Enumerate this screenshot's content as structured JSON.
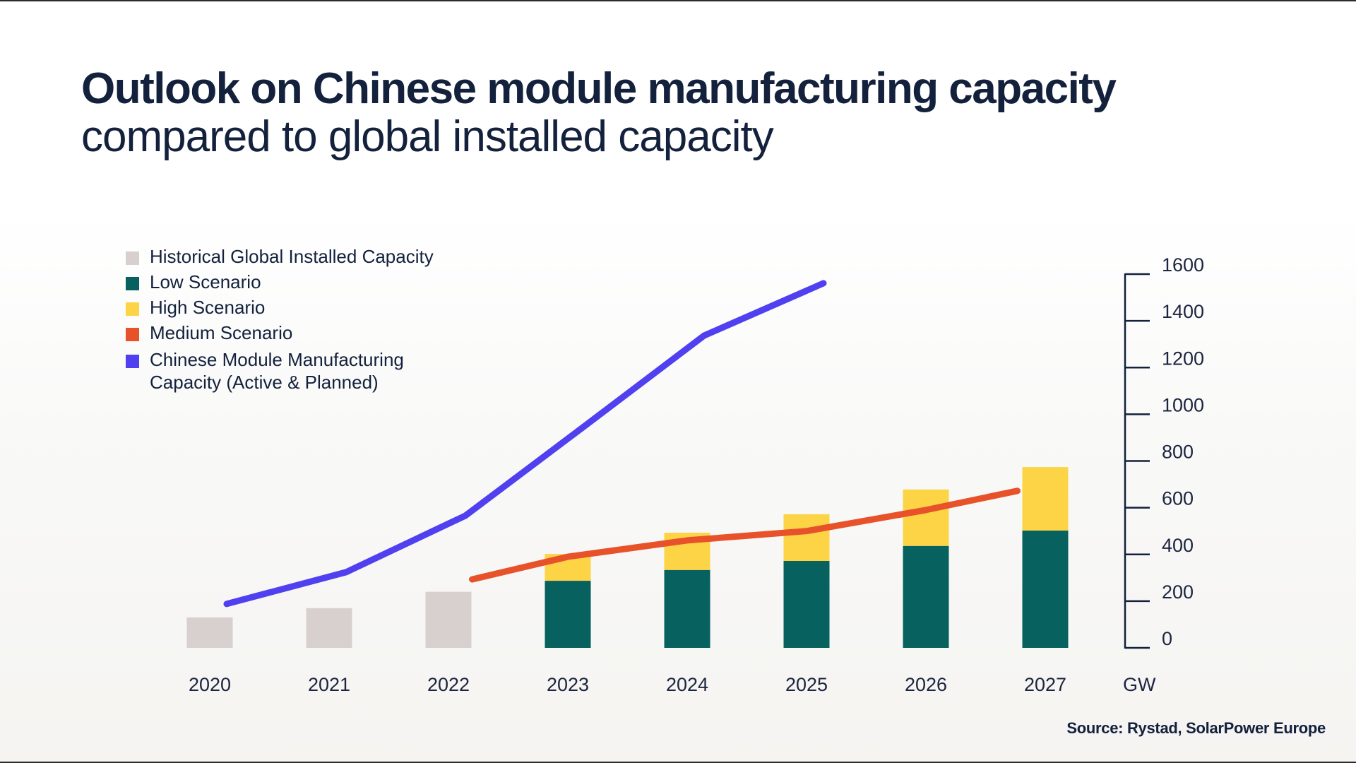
{
  "header": {
    "title": "Outlook on Chinese module manufacturing capacity",
    "subtitle": "compared to global installed capacity"
  },
  "legend": [
    {
      "key": "historical",
      "label": "Historical Global Installed Capacity",
      "color": "#d8d0ce"
    },
    {
      "key": "low",
      "label": "Low Scenario",
      "color": "#07615f"
    },
    {
      "key": "high",
      "label": "High Scenario",
      "color": "#fdd446"
    },
    {
      "key": "medium",
      "label": "Medium Scenario",
      "color": "#e8522a"
    },
    {
      "key": "chinese",
      "label": "Chinese Module Manufacturing Capacity (Active & Planned)",
      "color": "#5040f0"
    }
  ],
  "source": "Source: Rystad, SolarPower Europe",
  "chart_data": {
    "type": "bar",
    "title": "Outlook on Chinese module manufacturing capacity compared to global installed capacity",
    "xlabel": "",
    "ylabel": "GW",
    "y_unit_label": "GW",
    "ylim": [
      0,
      1600
    ],
    "y_ticks": [
      0,
      200,
      400,
      600,
      800,
      1000,
      1200,
      1400,
      1600
    ],
    "y_axis_position": "right",
    "grid": false,
    "legend_position": "top-left",
    "categories": [
      "2020",
      "2021",
      "2022",
      "2023",
      "2024",
      "2025",
      "2026",
      "2027"
    ],
    "series": [
      {
        "name": "Historical Global Installed Capacity",
        "type": "bar",
        "color": "#d8d0ce",
        "values": [
          130,
          170,
          240,
          null,
          null,
          null,
          null,
          null
        ]
      },
      {
        "name": "Low Scenario",
        "type": "bar",
        "stack": "scenario",
        "color": "#07615f",
        "values": [
          null,
          null,
          null,
          287,
          333,
          372,
          436,
          502
        ]
      },
      {
        "name": "High Scenario",
        "type": "bar",
        "stack": "scenario",
        "color": "#fdd446",
        "note": "top of stacked bar = high scenario total",
        "values": [
          null,
          null,
          null,
          402,
          493,
          572,
          678,
          774
        ]
      },
      {
        "name": "Medium Scenario",
        "type": "line",
        "color": "#e8522a",
        "values": [
          null,
          null,
          293,
          390,
          460,
          500,
          590,
          672
        ]
      },
      {
        "name": "Chinese Module Manufacturing Capacity (Active & Planned)",
        "type": "line",
        "color": "#5040f0",
        "values": [
          188,
          324,
          566,
          950,
          1337,
          1561,
          null,
          null
        ]
      }
    ]
  }
}
